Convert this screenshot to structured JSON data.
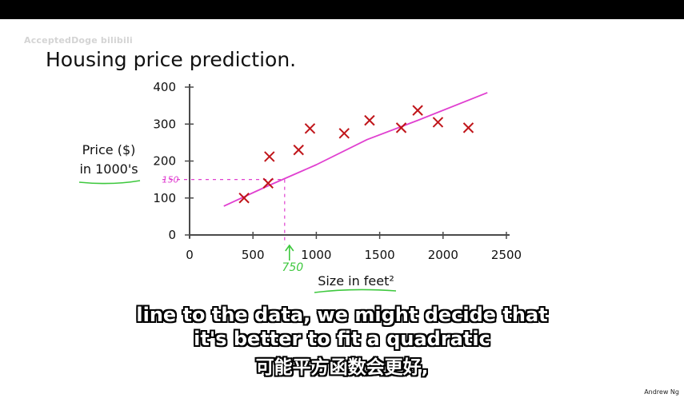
{
  "watermark": "AcceptedDoge bilibili",
  "slide_title": "Housing price prediction.",
  "author": "Andrew Ng",
  "subtitles": {
    "line1": "line to the data, we might decide that",
    "line2": "it's better to fit a quadratic",
    "line3": "可能平方函数会更好,"
  },
  "colors": {
    "data_marker": "#c0151a",
    "fit_line": "#e040d0",
    "annotation_green": "#3ec83e"
  },
  "chart_data": {
    "type": "scatter",
    "title": "",
    "xlabel": "Size in feet²",
    "ylabel": [
      "Price ($)",
      "in 1000's"
    ],
    "xlim": [
      0,
      2500
    ],
    "ylim": [
      0,
      400
    ],
    "xticks": [
      0,
      500,
      1000,
      1500,
      2000,
      2500
    ],
    "yticks": [
      0,
      100,
      200,
      300,
      400
    ],
    "grid": false,
    "series": [
      {
        "marker": "x",
        "x": [
          430,
          620,
          630,
          860,
          950,
          1220,
          1420,
          1670,
          1800,
          1960,
          2200
        ],
        "y": [
          100,
          140,
          212,
          230,
          288,
          275,
          310,
          290,
          337,
          305,
          290
        ]
      }
    ],
    "fit_line": {
      "x": [
        270,
        600,
        1000,
        1400,
        1800,
        2350
      ],
      "y": [
        78,
        130,
        190,
        258,
        310,
        385
      ]
    },
    "annotations": {
      "y_value_label": "150",
      "y_value": 150,
      "x_value_label": "750",
      "x_value": 750
    }
  }
}
